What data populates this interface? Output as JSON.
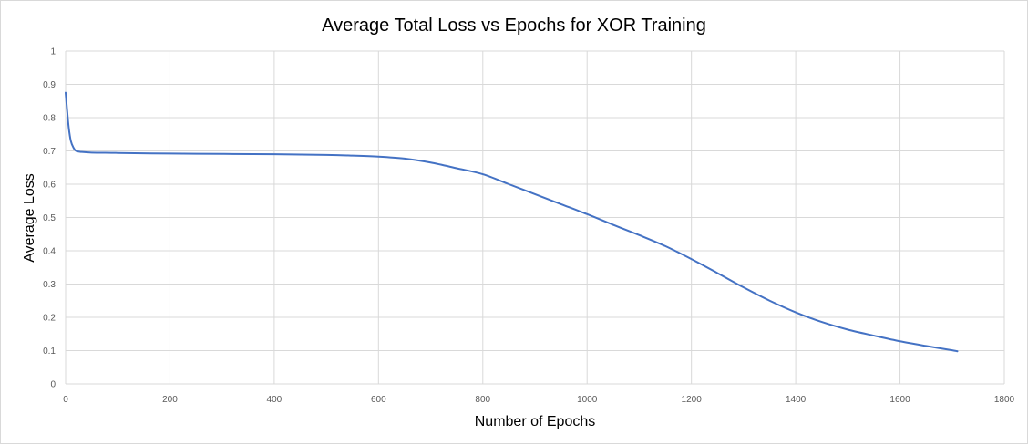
{
  "chart_data": {
    "type": "line",
    "title": "Average Total Loss vs Epochs for XOR Training",
    "xlabel": "Number of Epochs",
    "ylabel": "Average Loss",
    "xlim": [
      0,
      1800
    ],
    "ylim": [
      0,
      1
    ],
    "xticks": [
      0,
      200,
      400,
      600,
      800,
      1000,
      1200,
      1400,
      1600,
      1800
    ],
    "yticks": [
      0,
      0.1,
      0.2,
      0.3,
      0.4,
      0.5,
      0.6,
      0.7,
      0.8,
      0.9,
      1
    ],
    "ytick_labels": [
      "0",
      "0.1",
      "0.2",
      "0.3",
      "0.4",
      "0.5",
      "0.6",
      "0.7",
      "0.8",
      "0.9",
      "1"
    ],
    "grid": true,
    "legend": "none",
    "series": [
      {
        "color": "#4472c4",
        "x": [
          0,
          3,
          6,
          10,
          15,
          20,
          30,
          50,
          100,
          200,
          300,
          400,
          500,
          550,
          600,
          650,
          700,
          750,
          800,
          850,
          900,
          950,
          1000,
          1050,
          1100,
          1150,
          1200,
          1250,
          1300,
          1350,
          1400,
          1450,
          1500,
          1550,
          1600,
          1650,
          1700,
          1710
        ],
        "y": [
          0.875,
          0.82,
          0.77,
          0.73,
          0.71,
          0.7,
          0.697,
          0.695,
          0.694,
          0.692,
          0.691,
          0.69,
          0.688,
          0.686,
          0.683,
          0.677,
          0.665,
          0.648,
          0.63,
          0.6,
          0.57,
          0.54,
          0.51,
          0.478,
          0.447,
          0.414,
          0.375,
          0.333,
          0.29,
          0.25,
          0.215,
          0.186,
          0.163,
          0.145,
          0.128,
          0.114,
          0.101,
          0.098
        ]
      }
    ]
  }
}
